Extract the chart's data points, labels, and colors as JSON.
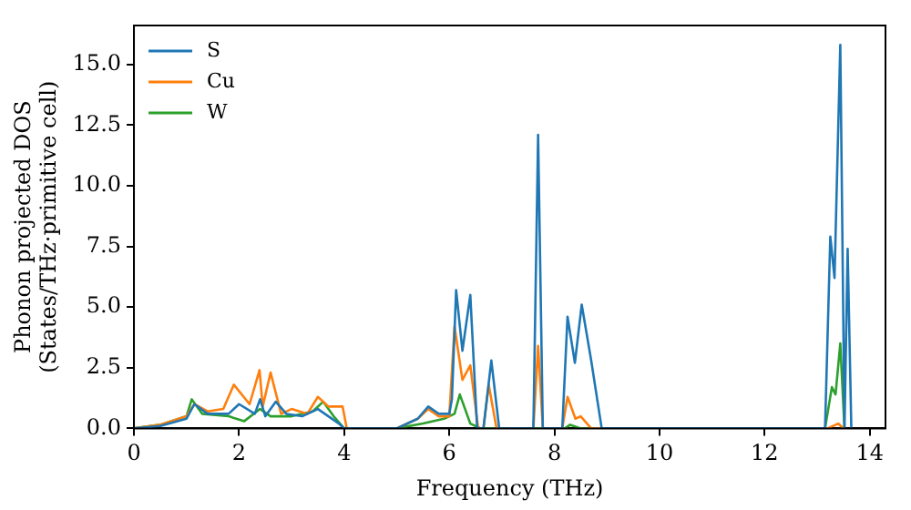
{
  "chart_data": {
    "type": "line",
    "xlabel": "Frequency (THz)",
    "ylabel": "Phonon projected DOS\n(States/THz·primitive cell)",
    "xlim": [
      0,
      14.3
    ],
    "xticks": [
      0,
      2,
      4,
      6,
      8,
      10,
      12,
      14
    ],
    "ylim": [
      0,
      16.6
    ],
    "yticks": [
      {
        "value": 0,
        "label": "0.0"
      },
      {
        "value": 2.5,
        "label": "2.5"
      },
      {
        "value": 5,
        "label": "5.0"
      },
      {
        "value": 7.5,
        "label": "7.5"
      },
      {
        "value": 10,
        "label": "10.0"
      },
      {
        "value": 12.5,
        "label": "12.5"
      },
      {
        "value": 15,
        "label": "15.0"
      }
    ],
    "grid": false,
    "legend": "top left",
    "marker": "none",
    "line_style": "solid",
    "series": [
      {
        "name": "S",
        "color": "#1f77b4",
        "x": [
          0,
          0.5,
          1.0,
          1.15,
          1.4,
          1.8,
          2.0,
          2.3,
          2.4,
          2.5,
          2.7,
          2.9,
          3.2,
          3.5,
          3.7,
          3.9,
          4.0,
          5.0,
          5.4,
          5.6,
          5.8,
          6.0,
          6.05,
          6.13,
          6.25,
          6.4,
          6.53,
          6.65,
          6.8,
          6.95,
          7.6,
          7.69,
          7.78,
          8.15,
          8.25,
          8.39,
          8.52,
          8.7,
          8.9,
          13.15,
          13.25,
          13.33,
          13.44,
          13.52,
          13.58,
          13.65
        ],
        "values": [
          0,
          0.1,
          0.4,
          1.0,
          0.6,
          0.6,
          1.0,
          0.6,
          1.2,
          0.5,
          1.1,
          0.6,
          0.5,
          0.8,
          0.5,
          0.2,
          0,
          0,
          0.4,
          0.9,
          0.6,
          0.6,
          1.2,
          5.7,
          3.2,
          5.5,
          0,
          0,
          2.8,
          0,
          0,
          12.1,
          0,
          0,
          4.6,
          2.7,
          5.1,
          2.8,
          0,
          0,
          7.9,
          6.2,
          15.8,
          0,
          7.4,
          0
        ]
      },
      {
        "name": "Cu",
        "color": "#ff7f0e",
        "x": [
          0,
          0.5,
          1.0,
          1.15,
          1.4,
          1.7,
          1.9,
          2.2,
          2.39,
          2.45,
          2.6,
          2.8,
          3.0,
          3.3,
          3.5,
          3.7,
          3.97,
          4.05,
          5.0,
          5.4,
          5.6,
          5.8,
          6.0,
          6.1,
          6.25,
          6.4,
          6.55,
          6.65,
          6.75,
          6.9,
          7.6,
          7.69,
          7.78,
          8.15,
          8.25,
          8.4,
          8.5,
          8.7,
          13.2,
          13.4,
          13.5
        ],
        "values": [
          0,
          0.15,
          0.5,
          1.0,
          0.7,
          0.8,
          1.8,
          1.0,
          2.4,
          0.9,
          2.3,
          0.6,
          0.8,
          0.6,
          1.3,
          0.9,
          0.9,
          0,
          0,
          0.4,
          0.8,
          0.5,
          0.5,
          4.2,
          2.0,
          2.6,
          0,
          0,
          1.8,
          0,
          0,
          3.4,
          0,
          0,
          1.3,
          0.4,
          0.5,
          0,
          0,
          0.2,
          0
        ]
      },
      {
        "name": "W",
        "color": "#2ca02c",
        "x": [
          0,
          0.5,
          1.0,
          1.1,
          1.3,
          1.8,
          2.1,
          2.4,
          2.6,
          3.0,
          3.4,
          3.6,
          3.8,
          4.0,
          5.0,
          5.5,
          5.9,
          6.1,
          6.2,
          6.4,
          6.6,
          8.2,
          8.3,
          8.5,
          13.15,
          13.28,
          13.35,
          13.44,
          13.52
        ],
        "values": [
          0,
          0.15,
          0.5,
          1.2,
          0.6,
          0.5,
          0.3,
          0.8,
          0.5,
          0.5,
          0.7,
          1.1,
          0.5,
          0,
          0,
          0.2,
          0.4,
          0.6,
          1.4,
          0.2,
          0,
          0,
          0.15,
          0,
          0,
          1.7,
          1.4,
          3.5,
          0
        ]
      }
    ]
  }
}
